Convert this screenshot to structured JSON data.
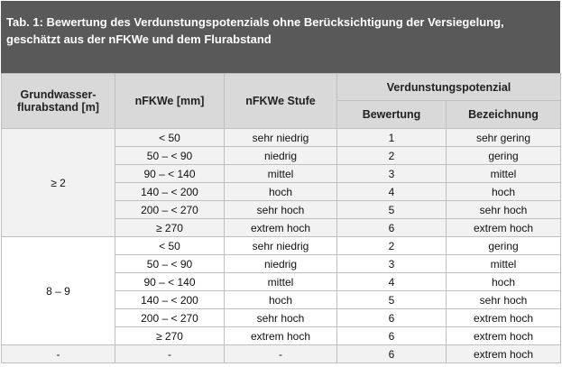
{
  "title": "Tab. 1: Bewertung des Verdunstungspotenzials ohne Berücksichtigung der Versiegelung, geschätzt aus der nFKWe und dem Flurabstand",
  "header": {
    "flurabstand": [
      "Grundwasser-",
      "flurabstand [m]"
    ],
    "nfkwe": "nFKWe [mm]",
    "stufe": "nFKWe Stufe",
    "potenzial": "Verdunstungspotenzial",
    "bewertung": "Bewertung",
    "bezeichnung": "Bezeichnung"
  },
  "groups": [
    {
      "label": "≥ 2",
      "rows": [
        [
          "< 50",
          "sehr niedrig",
          1,
          "sehr gering"
        ],
        [
          "50 – < 90",
          "niedrig",
          2,
          "gering"
        ],
        [
          "90 – < 140",
          "mittel",
          3,
          "mittel"
        ],
        [
          "140 – < 200",
          "hoch",
          4,
          "hoch"
        ],
        [
          "200 – < 270",
          "sehr hoch",
          5,
          "sehr hoch"
        ],
        [
          "≥ 270",
          "extrem hoch",
          6,
          "extrem hoch"
        ]
      ]
    },
    {
      "label": "8 – 9",
      "rows": [
        [
          "< 50",
          "sehr niedrig",
          2,
          "gering"
        ],
        [
          "50 – < 90",
          "niedrig",
          3,
          "mittel"
        ],
        [
          "90 – < 140",
          "mittel",
          4,
          "hoch"
        ],
        [
          "140 – < 200",
          "hoch",
          5,
          "sehr hoch"
        ],
        [
          "200 – < 270",
          "sehr hoch",
          6,
          "extrem hoch"
        ],
        [
          "≥ 270",
          "extrem hoch",
          6,
          "extrem hoch"
        ]
      ]
    },
    {
      "label": "-",
      "rows": [
        [
          "-",
          "-",
          6,
          "extrem hoch"
        ]
      ]
    }
  ]
}
